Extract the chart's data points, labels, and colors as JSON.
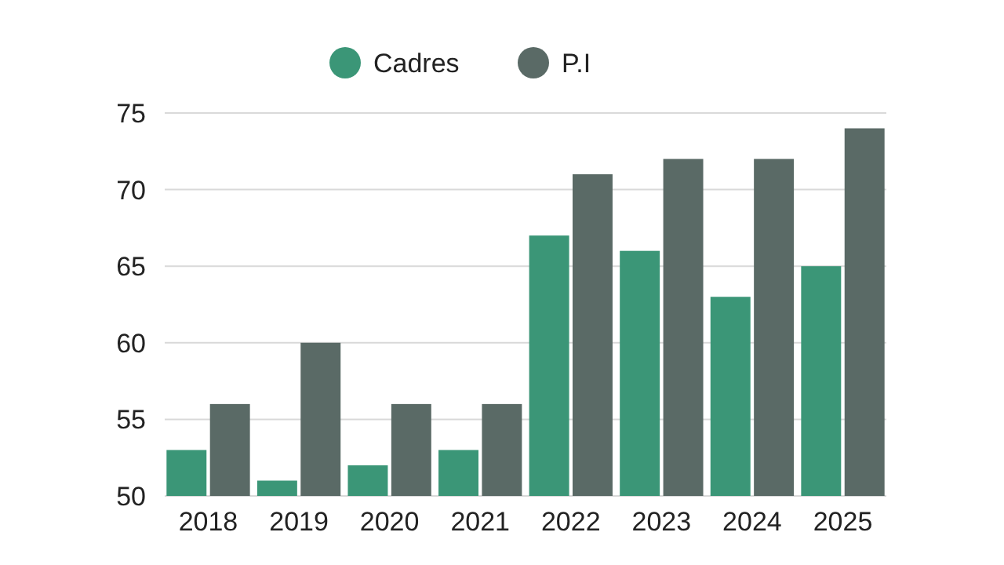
{
  "chart_data": {
    "type": "bar",
    "categories": [
      "2018",
      "2019",
      "2020",
      "2021",
      "2022",
      "2023",
      "2024",
      "2025"
    ],
    "series": [
      {
        "name": "Cadres",
        "color": "#3b9677",
        "values": [
          53,
          51,
          52,
          53,
          67,
          66,
          63,
          65
        ]
      },
      {
        "name": "P.I",
        "color": "#5a6a66",
        "values": [
          56,
          60,
          56,
          56,
          71,
          72,
          72,
          74
        ]
      }
    ],
    "ylim": [
      50,
      75
    ],
    "yticks": [
      50,
      55,
      60,
      65,
      70,
      75
    ],
    "grid": "y",
    "legend": "top"
  }
}
